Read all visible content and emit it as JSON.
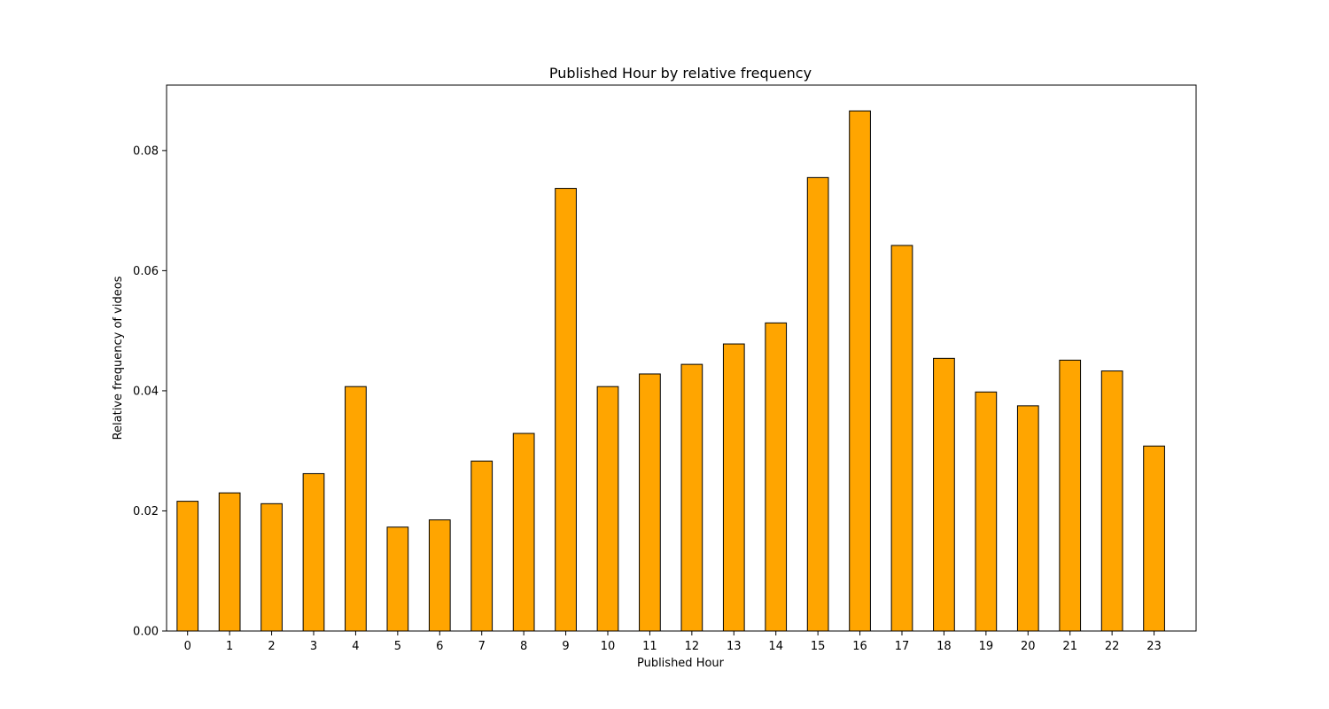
{
  "chart_data": {
    "type": "bar",
    "title": "Published Hour by relative frequency",
    "xlabel": "Published Hour",
    "ylabel": "Relative frequency of videos",
    "categories": [
      "0",
      "1",
      "2",
      "3",
      "4",
      "5",
      "6",
      "7",
      "8",
      "9",
      "10",
      "11",
      "12",
      "13",
      "14",
      "15",
      "16",
      "17",
      "18",
      "19",
      "20",
      "21",
      "22",
      "23"
    ],
    "values": [
      0.0216,
      0.023,
      0.0212,
      0.0262,
      0.0407,
      0.0173,
      0.0185,
      0.0283,
      0.0329,
      0.0737,
      0.0407,
      0.0428,
      0.0444,
      0.0478,
      0.0513,
      0.0755,
      0.0866,
      0.0642,
      0.0454,
      0.0398,
      0.0375,
      0.0451,
      0.0433,
      0.0308
    ],
    "yticks": [
      "0.00",
      "0.02",
      "0.04",
      "0.06",
      "0.08"
    ],
    "ytick_values": [
      0,
      0.02,
      0.04,
      0.06,
      0.08
    ],
    "ylim": [
      0,
      0.0909
    ],
    "grid": false,
    "legend": null,
    "colors": {
      "bar_fill": "#ffa500",
      "bar_edge": "#000000",
      "axis": "#000000"
    }
  }
}
